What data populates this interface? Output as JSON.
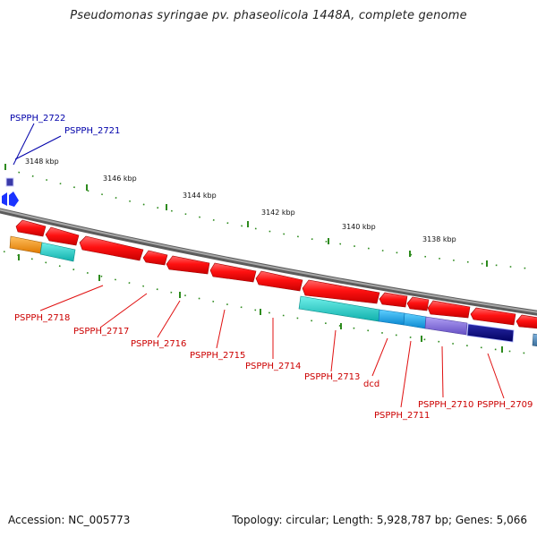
{
  "title": "Pseudomonas syringae pv. phaseolicola 1448A, complete genome",
  "footer": {
    "accession": "Accession: NC_005773",
    "topology": "Topology: circular; Length: 5,928,787 bp; Genes: 5,066"
  },
  "colors": {
    "backbone": "#7f7f7f",
    "tick": "#2e8b1e",
    "forward_label": "#0000aa",
    "reverse_label": "#cc0000"
  },
  "scale_labels": [
    "3148 kbp",
    "3146 kbp",
    "3144 kbp",
    "3142 kbp",
    "3140 kbp",
    "3138 kbp"
  ],
  "forward_labels": [
    {
      "name": "PSPPH_2722",
      "color": "#0000aa"
    },
    {
      "name": "PSPPH_2721",
      "color": "#0000aa"
    }
  ],
  "reverse_labels": [
    {
      "name": "PSPPH_2718"
    },
    {
      "name": "PSPPH_2717"
    },
    {
      "name": "PSPPH_2716"
    },
    {
      "name": "PSPPH_2715"
    },
    {
      "name": "PSPPH_2714"
    },
    {
      "name": "PSPPH_2713"
    },
    {
      "name": "dcd"
    },
    {
      "name": "PSPPH_2711"
    },
    {
      "name": "PSPPH_2710"
    },
    {
      "name": "PSPPH_2709"
    }
  ],
  "feature_colors": {
    "cds": "#ff1111",
    "orange": "#ff9910",
    "teal": "#18d0cc",
    "light_blue": "#19a8ee",
    "purple": "#8870dd",
    "navy": "#0a0a82",
    "steel": "#4a86b8",
    "forward_blue": "#1a33ff"
  }
}
